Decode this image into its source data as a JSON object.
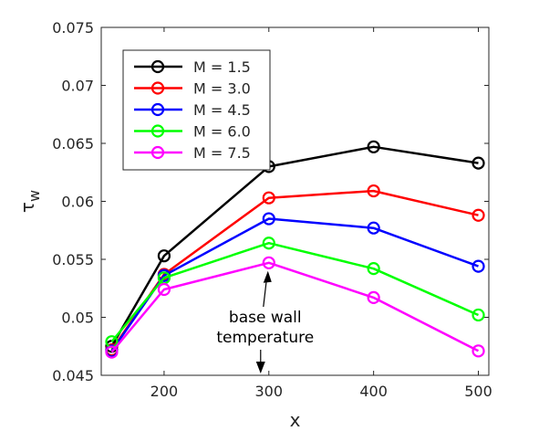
{
  "chart_data": {
    "type": "line",
    "x": [
      150,
      200,
      300,
      400,
      500
    ],
    "xlim": [
      140,
      510
    ],
    "ylim": [
      0.045,
      0.075
    ],
    "xticks": [
      "200",
      "300",
      "400",
      "500"
    ],
    "yticks": [
      "0.045",
      "0.05",
      "0.055",
      "0.06",
      "0.065",
      "0.07",
      "0.075"
    ],
    "xlabel": "x",
    "ylabel": "τ_w",
    "grid": false,
    "legend_position": "top-left",
    "marker": "open-circle",
    "series": [
      {
        "name": "M = 1.5",
        "color": "#000000",
        "values": [
          0.0475,
          0.0553,
          0.063,
          0.0647,
          0.0633
        ]
      },
      {
        "name": "M = 3.0",
        "color": "#ff0000",
        "values": [
          0.0472,
          0.0537,
          0.0603,
          0.0609,
          0.0588
        ]
      },
      {
        "name": "M = 4.5",
        "color": "#0000ff",
        "values": [
          0.0471,
          0.0536,
          0.0585,
          0.0577,
          0.0544
        ]
      },
      {
        "name": "M = 6.0",
        "color": "#00ff00",
        "values": [
          0.0479,
          0.0534,
          0.0564,
          0.0542,
          0.0502
        ]
      },
      {
        "name": "M = 7.5",
        "color": "#ff00ff",
        "values": [
          0.047,
          0.0524,
          0.0547,
          0.0517,
          0.0471
        ]
      }
    ],
    "annotation": {
      "lines": [
        "base wall",
        "temperature"
      ],
      "up_arrow_target": [
        300,
        0.0547
      ]
    }
  }
}
